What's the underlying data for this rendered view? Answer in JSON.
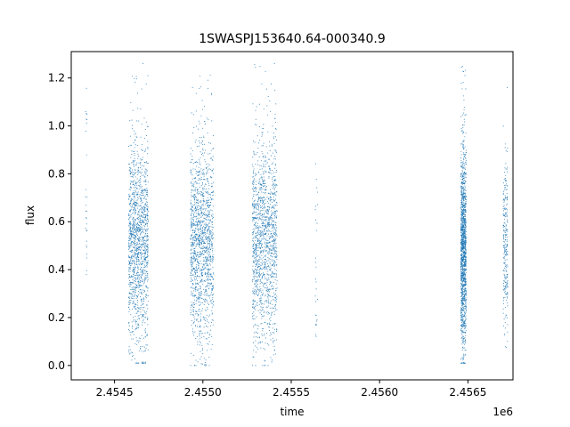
{
  "chart_data": {
    "type": "scatter",
    "title": "1SWASPJ153640.64-000340.9",
    "xlabel": "time",
    "ylabel": "flux",
    "x_offset_label": "1e6",
    "x_tick_labels": [
      "2.4545",
      "2.4550",
      "2.4555",
      "2.4560",
      "2.4565"
    ],
    "x_ticks": [
      2454500,
      2455000,
      2455500,
      2456000,
      2456500
    ],
    "y_tick_labels": [
      "0.0",
      "0.2",
      "0.4",
      "0.6",
      "0.8",
      "1.0",
      "1.2"
    ],
    "y_ticks": [
      0.0,
      0.2,
      0.4,
      0.6,
      0.8,
      1.0,
      1.2
    ],
    "xlim": [
      2454255,
      2456755
    ],
    "ylim": [
      -0.06,
      1.31
    ],
    "grid": false,
    "marker_color": "#1f77b4",
    "series": [
      {
        "observing_seasons": [
          {
            "x": [
              2454335,
              2454345
            ],
            "y_range": [
              0.3,
              1.16
            ],
            "y_center": 0.6,
            "density": "sparse"
          },
          {
            "x": [
              2454580,
              2454690
            ],
            "y_range": [
              0.01,
              1.26
            ],
            "y_center": 0.5,
            "density": "dense"
          },
          {
            "x": [
              2454930,
              2455060
            ],
            "y_range": [
              0.0,
              1.24
            ],
            "y_center": 0.5,
            "density": "dense"
          },
          {
            "x": [
              2455280,
              2455420
            ],
            "y_range": [
              0.0,
              1.26
            ],
            "y_center": 0.52,
            "density": "dense"
          },
          {
            "x": [
              2455635,
              2455650
            ],
            "y_range": [
              0.1,
              0.85
            ],
            "y_center": 0.5,
            "density": "sparse"
          },
          {
            "x": [
              2456460,
              2456490
            ],
            "y_range": [
              0.01,
              1.26
            ],
            "y_center": 0.48,
            "density": "dense"
          },
          {
            "x": [
              2456700,
              2456725
            ],
            "y_range": [
              0.06,
              1.16
            ],
            "y_center": 0.5,
            "density": "medium"
          }
        ]
      }
    ]
  }
}
